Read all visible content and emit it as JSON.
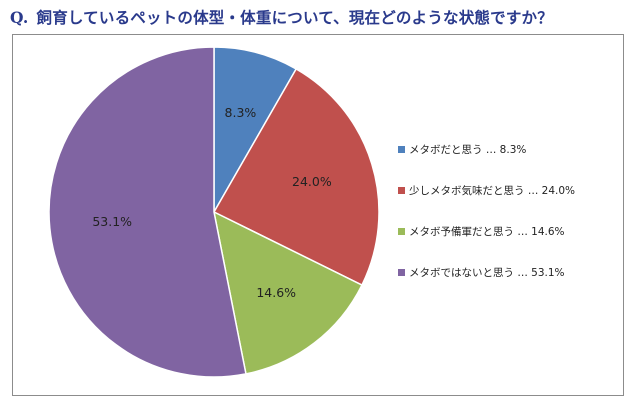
{
  "question": {
    "prefix": "Q.",
    "text": "飼育しているペットの体型・体重について、現在どのような状態ですか？"
  },
  "chart_data": {
    "type": "pie",
    "title": "Q. 飼育しているペットの体型・体重について、現在どのような状態ですか？",
    "start_angle": "12 o'clock",
    "direction": "clockwise",
    "legend_position": "right",
    "slices": [
      {
        "label": "メタボだと思う",
        "value": 8.3,
        "display": "8.3%",
        "legend_text": "メタボだと思う … 8.3%",
        "color": "#4f81bd"
      },
      {
        "label": "少しメタボ気味だと思う",
        "value": 24.0,
        "display": "24.0%",
        "legend_text": "少しメタボ気味だと思う … 24.0%",
        "color": "#c0504d"
      },
      {
        "label": "メタボ予備軍だと思う",
        "value": 14.6,
        "display": "14.6%",
        "legend_text": "メタボ予備軍だと思う … 14.6%",
        "color": "#9bbb59"
      },
      {
        "label": "メタボではないと思う",
        "value": 53.1,
        "display": "53.1%",
        "legend_text": "メタボではないと思う … 53.1%",
        "color": "#8064a2"
      }
    ]
  }
}
